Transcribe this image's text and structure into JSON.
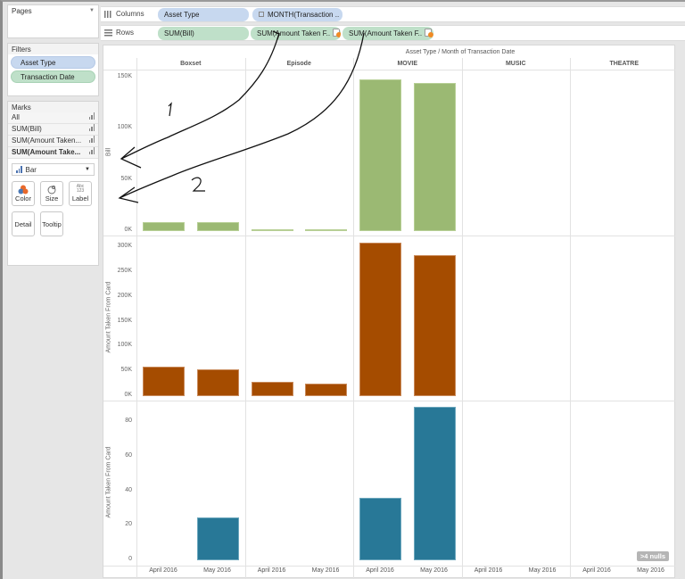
{
  "pages": {
    "title": "Pages"
  },
  "filters": {
    "title": "Filters",
    "items": [
      "Asset Type",
      "Transaction Date"
    ]
  },
  "marks": {
    "title": "Marks",
    "rows": [
      "All",
      "SUM(Bill)",
      "SUM(Amount Taken...",
      "SUM(Amount Take..."
    ],
    "mark_type": "Bar",
    "buttons": {
      "color": "Color",
      "size": "Size",
      "label": "Label",
      "label_icon": "Abc 123",
      "detail": "Detail",
      "tooltip": "Tooltip"
    }
  },
  "shelves": {
    "columns_label": "Columns",
    "rows_label": "Rows",
    "columns": [
      "Asset Type",
      "MONTH(Transaction .."
    ],
    "rows": [
      "SUM(Bill)",
      "SUM(Amount Taken F..",
      "SUM(Amount Taken F.."
    ]
  },
  "view": {
    "column_title": "Asset Type  /  Month of Transaction Date",
    "nulls_badge": ">4 nulls",
    "annotations": {
      "one": "1",
      "two": "2"
    }
  },
  "chart_data": {
    "type": "bar",
    "title": "Asset Type / Month of Transaction Date",
    "panes": [
      "Boxset",
      "Episode",
      "MOVIE",
      "MUSIC",
      "THEATRE"
    ],
    "categories": [
      "April 2016",
      "May 2016"
    ],
    "colors": {
      "bill": "#9bb973",
      "amount1": "#a54c00",
      "amount2": "#287897"
    },
    "rows": [
      {
        "measure": "SUM(Bill)",
        "ylabel": "Bill",
        "ylim": [
          0,
          150000
        ],
        "ticks": [
          "0K",
          "50K",
          "100K",
          "150K"
        ],
        "values": {
          "Boxset": [
            9000,
            8500
          ],
          "Episode": [
            1200,
            1800
          ],
          "MOVIE": [
            148000,
            145000
          ],
          "MUSIC": [
            null,
            null
          ],
          "THEATRE": [
            null,
            null
          ]
        }
      },
      {
        "measure": "SUM(Amount Taken From Card)",
        "ylabel": "Amount Taken From Card",
        "ylim": [
          0,
          300000
        ],
        "ticks": [
          "0K",
          "50K",
          "100K",
          "150K",
          "200K",
          "250K",
          "300K"
        ],
        "values": {
          "Boxset": [
            59000,
            53000
          ],
          "Episode": [
            29000,
            25000
          ],
          "MOVIE": [
            309000,
            284000
          ],
          "MUSIC": [
            null,
            null
          ],
          "THEATRE": [
            null,
            null
          ]
        }
      },
      {
        "measure": "SUM(Amount Taken From Card)",
        "ylabel": "Amount Taken From Card",
        "ylim": [
          0,
          80
        ],
        "ticks": [
          "0",
          "20",
          "40",
          "60",
          "80"
        ],
        "values": {
          "Boxset": [
            null,
            25
          ],
          "Episode": [
            null,
            null
          ],
          "MOVIE": [
            36,
            89
          ],
          "MUSIC": [
            null,
            null
          ],
          "THEATRE": [
            null,
            null
          ]
        }
      }
    ]
  }
}
